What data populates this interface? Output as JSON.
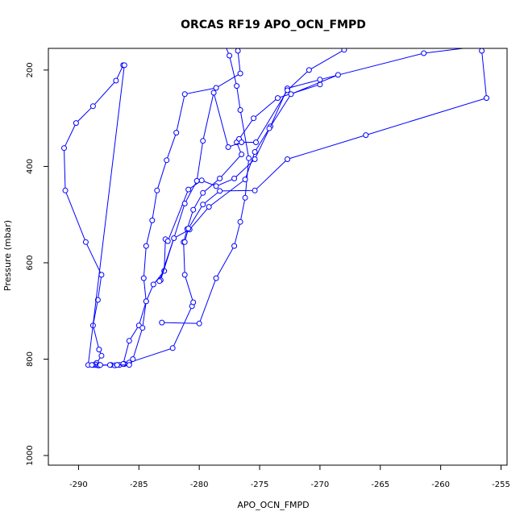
{
  "chart_data": {
    "type": "line",
    "title": "ORCAS RF19 APO_OCN_FMPD",
    "xlabel": "APO_OCN_FMPD",
    "ylabel": "Pressure (mbar)",
    "xlim": [
      -292.5,
      -254.5
    ],
    "ylim": [
      1020,
      155
    ],
    "y_inverted": true,
    "grid": false,
    "legend": "none",
    "x_ticks": [
      -290,
      -285,
      -280,
      -275,
      -270,
      -265,
      -260,
      -255
    ],
    "y_ticks": [
      200,
      400,
      600,
      800,
      1000
    ],
    "series": [
      {
        "color": "#0000ff",
        "marker": "open-circle",
        "x": [
          -286.3,
          -286.9,
          -288.8,
          -290.2,
          -291.2,
          -291.1,
          -289.4,
          -288.1,
          -288.4,
          -288.8,
          -288.3,
          -288.1,
          -288.5,
          -288.6,
          -288.4,
          -288.3,
          -288.6,
          -288.8,
          -288.3,
          -287.3,
          -287.0,
          -286.6,
          -286.2
        ],
        "y": [
          190,
          222,
          275,
          310,
          362,
          450,
          557,
          625,
          677,
          730,
          780,
          793,
          808,
          812,
          813,
          812,
          811,
          812,
          813,
          812,
          813,
          812,
          810
        ]
      },
      {
        "color": "#0000ff",
        "marker": "open-circle",
        "x": [
          -286.2,
          -289.2,
          -288.9,
          -288.2,
          -287.4,
          -286.8,
          -286.3,
          -285.8,
          -285.0,
          -284.4,
          -284.6,
          -284.4,
          -283.9,
          -283.5,
          -282.7,
          -281.9,
          -281.2,
          -278.6,
          -276.6,
          -276.8,
          -276.6,
          -274.0
        ],
        "y": [
          190,
          812,
          812,
          812,
          812,
          812,
          810,
          762,
          730,
          680,
          632,
          565,
          512,
          450,
          387,
          330,
          250,
          237,
          207,
          160,
          145,
          140
        ]
      },
      {
        "color": "#0000ff",
        "marker": "open-circle",
        "x": [
          -285.8,
          -282.2,
          -280.6,
          -280.5,
          -281.2,
          -281.3,
          -281.0,
          -280.5,
          -279.7,
          -278.3,
          -276.5,
          -276.9,
          -276.7,
          -275.5,
          -273.5,
          -270.0
        ],
        "y": [
          807,
          777,
          690,
          682,
          625,
          557,
          530,
          490,
          455,
          425,
          375,
          350,
          343,
          300,
          258,
          230
        ]
      },
      {
        "color": "#0000ff",
        "marker": "open-circle",
        "x": [
          -283.1,
          -280.0,
          -278.6,
          -277.1,
          -276.6,
          -276.2,
          -275.9,
          -276.6,
          -276.9,
          -277.5,
          -278.0,
          -274.5,
          -272.5,
          -269.0
        ],
        "y": [
          724,
          726,
          632,
          565,
          515,
          465,
          383,
          283,
          233,
          170,
          140,
          135,
          130,
          125
        ]
      },
      {
        "color": "#0000ff",
        "marker": "open-circle",
        "x": [
          -286.8,
          -285.8,
          -285.5,
          -284.7,
          -284.4,
          -283.8,
          -282.9,
          -282.8,
          -282.6,
          -280.9,
          -279.8,
          -278.6,
          -277.1,
          -275.4,
          -274.1,
          -272.7,
          -270.0,
          -261.4,
          -256.5
        ],
        "y": [
          812,
          812,
          800,
          735,
          680,
          645,
          617,
          551,
          555,
          448,
          429,
          441,
          425,
          385,
          317,
          238,
          220,
          165,
          150
        ]
      },
      {
        "color": "#0000ff",
        "marker": "open-circle",
        "x": [
          -283.2,
          -281.2,
          -280.2,
          -279.7,
          -278.8,
          -277.6,
          -276.5,
          -275.3,
          -272.7,
          -270.9,
          -268.0
        ],
        "y": [
          636,
          477,
          430,
          347,
          247,
          360,
          350,
          350,
          242,
          200,
          158
        ]
      },
      {
        "color": "#0000ff",
        "marker": "open-circle",
        "x": [
          -283.3,
          -282.1,
          -280.8,
          -279.2,
          -276.2,
          -275.4,
          -274.2,
          -272.4,
          -268.5
        ],
        "y": [
          638,
          549,
          531,
          484,
          427,
          370,
          321,
          250,
          210
        ]
      },
      {
        "color": "#0000ff",
        "marker": "open-circle",
        "x": [
          -281.2,
          -280.9,
          -279.7,
          -278.3,
          -275.4,
          -272.7,
          -266.2,
          -256.2,
          -256.6
        ],
        "y": [
          557,
          529,
          479,
          451,
          450,
          385,
          335,
          258,
          160
        ]
      }
    ]
  }
}
